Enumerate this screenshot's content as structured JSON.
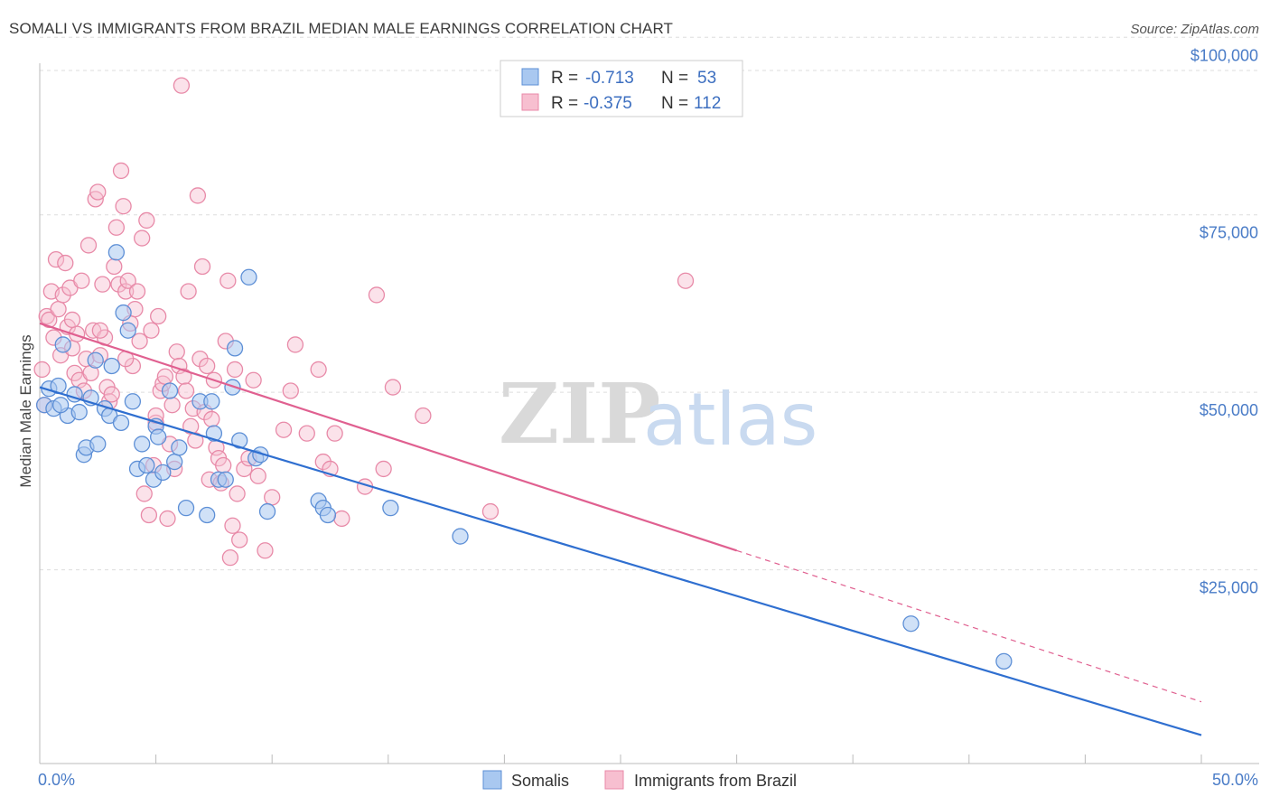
{
  "title": "SOMALI VS IMMIGRANTS FROM BRAZIL MEDIAN MALE EARNINGS CORRELATION CHART",
  "source": "Source: ZipAtlas.com",
  "watermark": {
    "zip": "ZIP",
    "atlas": "atlas"
  },
  "legend": {
    "r_label": "R =",
    "n_label": "N =",
    "rows": [
      {
        "r": "-0.713",
        "n": "53"
      },
      {
        "r": "-0.375",
        "n": "112"
      }
    ]
  },
  "bottom_legend": [
    "Somalis",
    "Immigrants from Brazil"
  ],
  "colors": {
    "somali_fill": "#a9c8f0",
    "somali_stroke": "#5d8fd6",
    "somali_line": "#2f6fd0",
    "brazil_fill": "#f7bfd0",
    "brazil_stroke": "#e88aa8",
    "brazil_line": "#e06090",
    "grid": "#dddddd",
    "axis_text": "#4a7cc7"
  },
  "chart_data": {
    "type": "scatter",
    "title": "SOMALI VS IMMIGRANTS FROM BRAZIL MEDIAN MALE EARNINGS CORRELATION CHART",
    "xlabel": "",
    "ylabel": "Median Male Earnings",
    "xlim": [
      0,
      50
    ],
    "ylim": [
      0,
      105000
    ],
    "x_tick_labels": [
      "0.0%",
      "50.0%"
    ],
    "y_ticks": [
      25000,
      50000,
      75000,
      100000
    ],
    "y_tick_labels": [
      "$25,000",
      "$50,000",
      "$75,000",
      "$100,000"
    ],
    "grid": true,
    "legend_position": "top-center",
    "series": [
      {
        "name": "Somalis",
        "r": -0.713,
        "n": 53,
        "trend": {
          "x": [
            0,
            50
          ],
          "y": [
            53000,
            4000
          ]
        },
        "points": [
          [
            0.2,
            50500
          ],
          [
            0.4,
            52800
          ],
          [
            0.6,
            50000
          ],
          [
            0.8,
            53200
          ],
          [
            1.0,
            59000
          ],
          [
            1.2,
            49000
          ],
          [
            1.5,
            52000
          ],
          [
            1.7,
            49500
          ],
          [
            1.9,
            43500
          ],
          [
            2.0,
            44500
          ],
          [
            2.2,
            51500
          ],
          [
            2.4,
            56800
          ],
          [
            2.5,
            45000
          ],
          [
            2.8,
            50000
          ],
          [
            3.0,
            49000
          ],
          [
            3.1,
            56000
          ],
          [
            3.3,
            72000
          ],
          [
            3.5,
            48000
          ],
          [
            3.6,
            63500
          ],
          [
            3.8,
            61000
          ],
          [
            4.0,
            51000
          ],
          [
            4.2,
            41500
          ],
          [
            4.4,
            45000
          ],
          [
            4.6,
            42000
          ],
          [
            4.9,
            40000
          ],
          [
            5.0,
            47500
          ],
          [
            5.1,
            46000
          ],
          [
            5.3,
            41000
          ],
          [
            5.6,
            52500
          ],
          [
            5.8,
            42500
          ],
          [
            6.0,
            44500
          ],
          [
            6.3,
            36000
          ],
          [
            6.9,
            51000
          ],
          [
            7.2,
            35000
          ],
          [
            7.4,
            51000
          ],
          [
            7.5,
            46500
          ],
          [
            7.7,
            40000
          ],
          [
            8.0,
            40000
          ],
          [
            8.3,
            53000
          ],
          [
            8.4,
            58500
          ],
          [
            8.6,
            45500
          ],
          [
            9.0,
            68500
          ],
          [
            9.3,
            43000
          ],
          [
            9.5,
            43500
          ],
          [
            9.8,
            35500
          ],
          [
            12.0,
            37000
          ],
          [
            12.2,
            36000
          ],
          [
            12.4,
            35000
          ],
          [
            15.1,
            36000
          ],
          [
            18.1,
            32000
          ],
          [
            37.5,
            19700
          ],
          [
            41.5,
            14400
          ],
          [
            0.9,
            50500
          ]
        ]
      },
      {
        "name": "Immigrants from Brazil",
        "r": -0.375,
        "n": 112,
        "trend": {
          "x": [
            0,
            30
          ],
          "y": [
            62000,
            30000
          ]
        },
        "trend_dashed": {
          "x": [
            30,
            50
          ],
          "y": [
            30000,
            8700
          ]
        },
        "points": [
          [
            0.1,
            55500
          ],
          [
            0.2,
            50500
          ],
          [
            0.3,
            63000
          ],
          [
            0.4,
            62500
          ],
          [
            0.5,
            66500
          ],
          [
            0.6,
            60000
          ],
          [
            0.7,
            71000
          ],
          [
            0.8,
            64000
          ],
          [
            0.9,
            57500
          ],
          [
            1.0,
            66000
          ],
          [
            1.1,
            70500
          ],
          [
            1.2,
            61500
          ],
          [
            1.3,
            67000
          ],
          [
            1.4,
            58500
          ],
          [
            1.5,
            55000
          ],
          [
            1.6,
            60500
          ],
          [
            1.7,
            54000
          ],
          [
            1.8,
            68000
          ],
          [
            1.9,
            52500
          ],
          [
            2.0,
            57000
          ],
          [
            2.1,
            73000
          ],
          [
            2.2,
            55000
          ],
          [
            2.3,
            61000
          ],
          [
            2.4,
            79500
          ],
          [
            2.5,
            80500
          ],
          [
            2.6,
            57500
          ],
          [
            2.7,
            67500
          ],
          [
            2.8,
            60000
          ],
          [
            2.9,
            53000
          ],
          [
            3.0,
            51000
          ],
          [
            3.1,
            52000
          ],
          [
            3.2,
            70000
          ],
          [
            3.3,
            75500
          ],
          [
            3.4,
            67500
          ],
          [
            3.5,
            83500
          ],
          [
            3.6,
            78500
          ],
          [
            3.7,
            66500
          ],
          [
            3.8,
            68000
          ],
          [
            3.9,
            62000
          ],
          [
            4.0,
            56000
          ],
          [
            4.1,
            64000
          ],
          [
            4.2,
            66500
          ],
          [
            4.3,
            59500
          ],
          [
            4.4,
            74000
          ],
          [
            4.5,
            38000
          ],
          [
            4.6,
            76500
          ],
          [
            4.7,
            35000
          ],
          [
            4.8,
            61000
          ],
          [
            4.9,
            42000
          ],
          [
            5.0,
            48000
          ],
          [
            5.1,
            63000
          ],
          [
            5.2,
            52500
          ],
          [
            5.3,
            53500
          ],
          [
            5.4,
            54500
          ],
          [
            5.5,
            34500
          ],
          [
            5.6,
            45000
          ],
          [
            5.7,
            50500
          ],
          [
            5.8,
            41500
          ],
          [
            5.9,
            58000
          ],
          [
            6.0,
            56000
          ],
          [
            6.1,
            95500
          ],
          [
            6.2,
            54500
          ],
          [
            6.3,
            52500
          ],
          [
            6.4,
            66500
          ],
          [
            6.5,
            47500
          ],
          [
            6.6,
            50000
          ],
          [
            6.7,
            45500
          ],
          [
            6.8,
            80000
          ],
          [
            6.9,
            57000
          ],
          [
            7.0,
            70000
          ],
          [
            7.1,
            49500
          ],
          [
            7.2,
            56000
          ],
          [
            7.3,
            40000
          ],
          [
            7.4,
            48500
          ],
          [
            7.5,
            54000
          ],
          [
            7.6,
            44500
          ],
          [
            7.7,
            43000
          ],
          [
            7.8,
            39500
          ],
          [
            7.9,
            42000
          ],
          [
            8.0,
            59500
          ],
          [
            8.1,
            68000
          ],
          [
            8.2,
            29000
          ],
          [
            8.3,
            33500
          ],
          [
            8.4,
            55500
          ],
          [
            8.5,
            38000
          ],
          [
            8.6,
            31500
          ],
          [
            8.8,
            41500
          ],
          [
            9.0,
            43000
          ],
          [
            9.2,
            54000
          ],
          [
            9.4,
            40500
          ],
          [
            9.7,
            30000
          ],
          [
            10.0,
            37500
          ],
          [
            10.5,
            47000
          ],
          [
            10.8,
            52500
          ],
          [
            11.0,
            59000
          ],
          [
            11.5,
            46500
          ],
          [
            12.0,
            55500
          ],
          [
            12.2,
            42500
          ],
          [
            12.5,
            41500
          ],
          [
            12.7,
            46500
          ],
          [
            13.0,
            34500
          ],
          [
            14.0,
            39000
          ],
          [
            14.5,
            66000
          ],
          [
            14.8,
            41500
          ],
          [
            15.2,
            53000
          ],
          [
            16.5,
            49000
          ],
          [
            19.4,
            35500
          ],
          [
            27.8,
            68000
          ],
          [
            2.6,
            61000
          ],
          [
            3.7,
            57000
          ],
          [
            1.4,
            62500
          ],
          [
            5.0,
            49000
          ]
        ]
      }
    ]
  }
}
